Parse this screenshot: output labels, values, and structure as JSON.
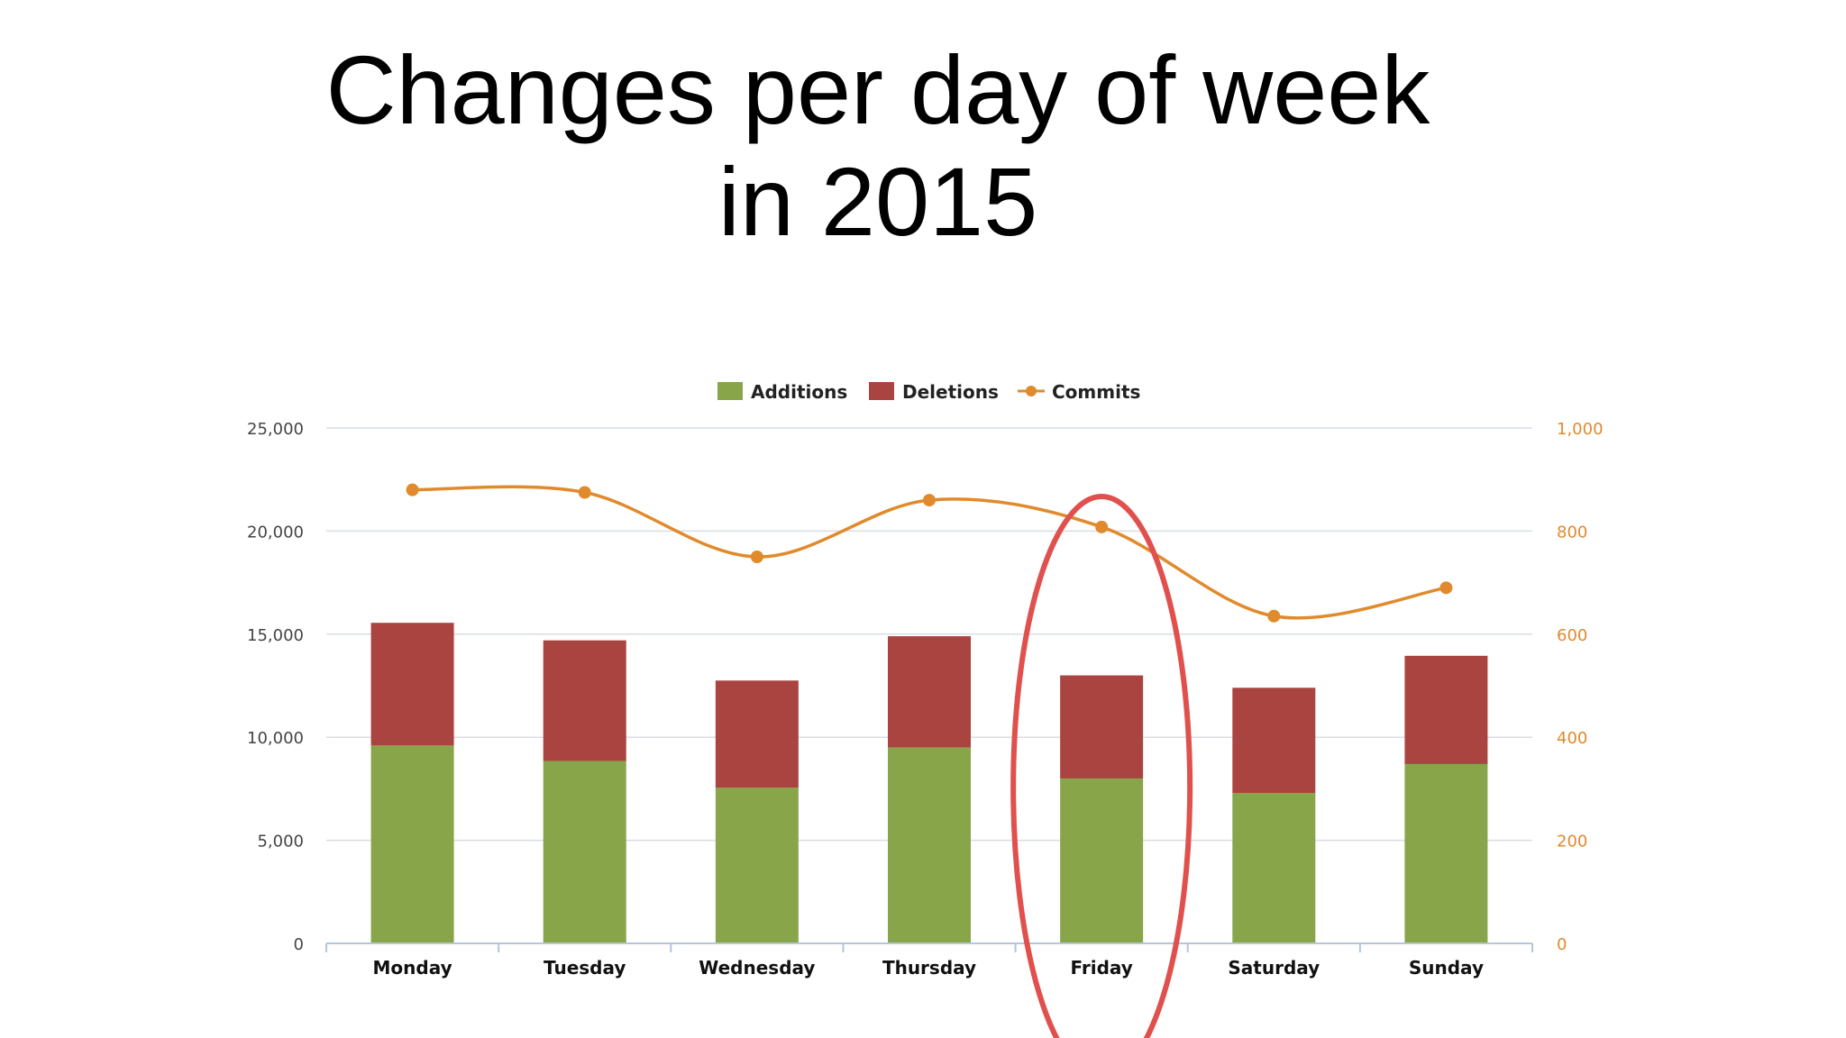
{
  "slide": {
    "title_line1": "Changes per day of week",
    "title_line2": "in 2015"
  },
  "colors": {
    "additions": "#88a54a",
    "deletions": "#aa4441",
    "commits": "#e08a2c",
    "highlight": "#e0504d",
    "grid": "#d9dde3",
    "axis": "#b4c6dc"
  },
  "chart_data": {
    "type": "bar",
    "stacked": true,
    "title": "",
    "xlabel": "",
    "ylabel": "",
    "categories": [
      "Monday",
      "Tuesday",
      "Wednesday",
      "Thursday",
      "Friday",
      "Saturday",
      "Sunday"
    ],
    "series": [
      {
        "name": "Additions",
        "type": "bar",
        "axis": "left",
        "values": [
          9600,
          8850,
          7550,
          9500,
          8000,
          7300,
          8700
        ]
      },
      {
        "name": "Deletions",
        "type": "bar",
        "axis": "left",
        "values": [
          5950,
          5850,
          5200,
          5400,
          5000,
          5100,
          5250
        ]
      },
      {
        "name": "Commits",
        "type": "line",
        "axis": "right",
        "smooth": true,
        "values": [
          880,
          875,
          750,
          860,
          808,
          635,
          690
        ]
      }
    ],
    "y_left": {
      "min": 0,
      "max": 25000,
      "ticks": [
        "0",
        "5,000",
        "10,000",
        "15,000",
        "20,000",
        "25,000"
      ]
    },
    "y_right": {
      "min": 0,
      "max": 1000,
      "ticks": [
        "0",
        "200",
        "400",
        "600",
        "800",
        "1,000"
      ]
    },
    "legend": [
      "Additions",
      "Deletions",
      "Commits"
    ],
    "legend_position": "top-center",
    "grid": true,
    "highlighted_category": "Friday"
  }
}
